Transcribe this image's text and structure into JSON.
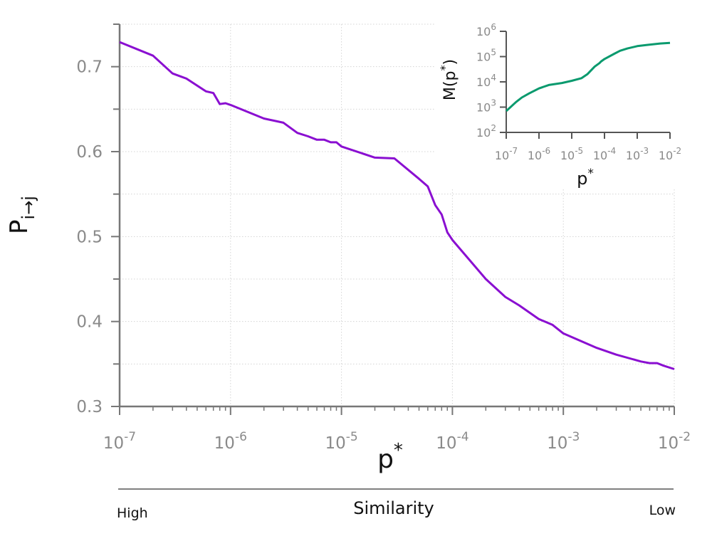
{
  "chart_data": [
    {
      "type": "line",
      "panel": "main",
      "xscale": "log",
      "xlim": [
        1e-07,
        0.01
      ],
      "ylim": [
        0.3,
        0.75
      ],
      "xlabel_base": "p",
      "xlabel_sup": "*",
      "ylabel_base": "P",
      "ylabel_sub": "i→j",
      "grid": true,
      "xtick_values": [
        1e-07,
        1e-06,
        1e-05,
        0.0001,
        0.001,
        0.01
      ],
      "xtick_labels": [
        {
          "base": "10",
          "exp": "-7"
        },
        {
          "base": "10",
          "exp": "-6"
        },
        {
          "base": "10",
          "exp": "-5"
        },
        {
          "base": "10",
          "exp": "-4"
        },
        {
          "base": "10",
          "exp": "-3"
        },
        {
          "base": "10",
          "exp": "-2"
        }
      ],
      "ytick_values": [
        0.3,
        0.4,
        0.5,
        0.6,
        0.7
      ],
      "ytick_labels": [
        "0.3",
        "0.4",
        "0.5",
        "0.6",
        "0.7"
      ],
      "series": [
        {
          "name": "P",
          "color": "#8a0fd1",
          "x": [
            1e-07,
            2e-07,
            3e-07,
            4e-07,
            6e-07,
            7e-07,
            8e-07,
            9e-07,
            1e-06,
            2e-06,
            3e-06,
            4e-06,
            5e-06,
            6e-06,
            7e-06,
            8e-06,
            9e-06,
            1e-05,
            2e-05,
            3e-05,
            5e-05,
            6e-05,
            7e-05,
            8e-05,
            9e-05,
            0.0001,
            0.0002,
            0.0003,
            0.0004,
            0.0006,
            0.0008,
            0.001,
            0.002,
            0.003,
            0.005,
            0.006,
            0.007,
            0.008,
            0.01
          ],
          "y": [
            0.729,
            0.713,
            0.692,
            0.686,
            0.671,
            0.669,
            0.656,
            0.657,
            0.655,
            0.639,
            0.634,
            0.622,
            0.618,
            0.614,
            0.614,
            0.611,
            0.611,
            0.606,
            0.593,
            0.592,
            0.568,
            0.559,
            0.537,
            0.526,
            0.505,
            0.496,
            0.45,
            0.429,
            0.419,
            0.403,
            0.396,
            0.386,
            0.369,
            0.361,
            0.353,
            0.351,
            0.351,
            0.348,
            0.344
          ]
        }
      ],
      "annotation_axis": {
        "label": "Similarity",
        "left": "High",
        "right": "Low"
      }
    },
    {
      "type": "line",
      "panel": "inset",
      "xscale": "log",
      "yscale": "log",
      "xlim": [
        1e-07,
        0.01
      ],
      "ylim": [
        100,
        1000000
      ],
      "xlabel_base": "p",
      "xlabel_sup": "*",
      "ylabel_base": "M(p",
      "ylabel_sup": "*",
      "ylabel_tail": ")",
      "xtick_values": [
        1e-07,
        1e-06,
        1e-05,
        0.0001,
        0.001,
        0.01
      ],
      "xtick_labels": [
        {
          "base": "10",
          "exp": "-7"
        },
        {
          "base": "10",
          "exp": "-6"
        },
        {
          "base": "10",
          "exp": "-5"
        },
        {
          "base": "10",
          "exp": "-4"
        },
        {
          "base": "10",
          "exp": "-3"
        },
        {
          "base": "10",
          "exp": "-2"
        }
      ],
      "ytick_values": [
        100,
        1000,
        10000,
        100000,
        1000000
      ],
      "ytick_labels": [
        {
          "base": "10",
          "exp": "2"
        },
        {
          "base": "10",
          "exp": "3"
        },
        {
          "base": "10",
          "exp": "4"
        },
        {
          "base": "10",
          "exp": "5"
        },
        {
          "base": "10",
          "exp": "6"
        }
      ],
      "series": [
        {
          "name": "M",
          "color": "#0a9a6e",
          "x": [
            1e-07,
            2e-07,
            3e-07,
            5e-07,
            1e-06,
            2e-06,
            5e-06,
            1e-05,
            2e-05,
            3e-05,
            5e-05,
            7e-05,
            8e-05,
            0.0001,
            0.0002,
            0.0003,
            0.0005,
            0.001,
            0.002,
            0.005,
            0.01
          ],
          "y": [
            700,
            1600,
            2400,
            3500,
            5500,
            7500,
            9000,
            11000,
            14000,
            20000,
            40000,
            55000,
            65000,
            80000,
            130000,
            170000,
            210000,
            260000,
            290000,
            330000,
            350000
          ]
        }
      ]
    }
  ]
}
